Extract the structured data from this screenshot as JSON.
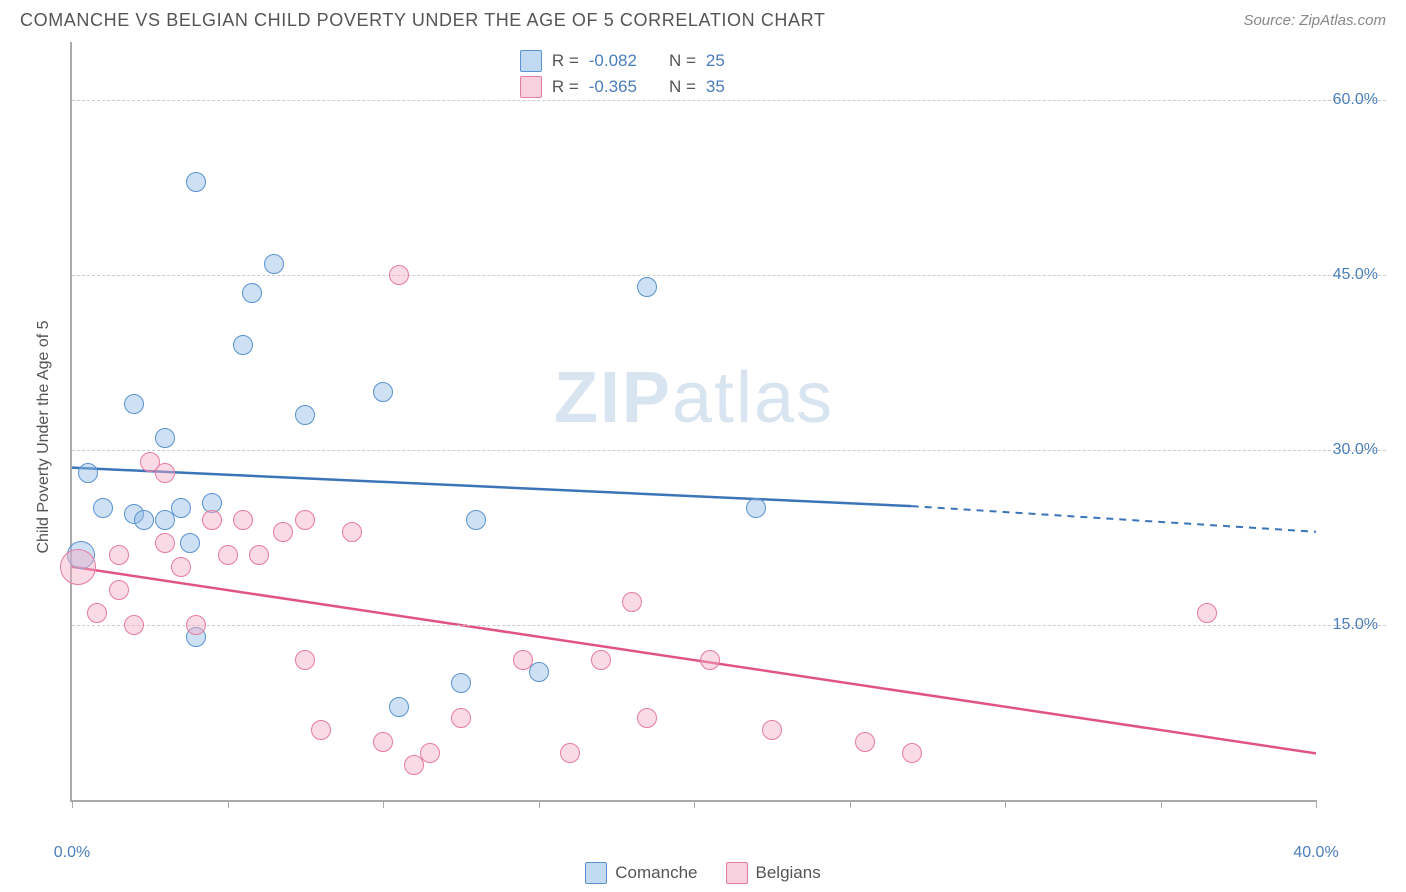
{
  "header": {
    "title": "COMANCHE VS BELGIAN CHILD POVERTY UNDER THE AGE OF 5 CORRELATION CHART",
    "source": "Source: ZipAtlas.com"
  },
  "chart": {
    "type": "scatter",
    "ylabel": "Child Poverty Under the Age of 5",
    "watermark": "ZIPatlas",
    "background_color": "#ffffff",
    "grid_color": "#cccccc",
    "axis_color": "#aaaaaa",
    "tick_label_color": "#4a7ebb",
    "xlim": [
      0,
      40
    ],
    "ylim": [
      0,
      65
    ],
    "xticks": [
      0,
      5,
      10,
      15,
      20,
      25,
      30,
      35,
      40
    ],
    "xtick_labels": {
      "0": "0.0%",
      "40": "40.0%"
    },
    "yticks": [
      15,
      30,
      45,
      60
    ],
    "ytick_labels": {
      "15": "15.0%",
      "30": "30.0%",
      "45": "45.0%",
      "60": "60.0%"
    },
    "point_radius": 10,
    "series": [
      {
        "name": "Comanche",
        "color_fill": "rgba(144,187,230,0.45)",
        "color_stroke": "#5b93cf",
        "line_color": "#3b74b8",
        "trend": {
          "x0": 0,
          "y0": 28.5,
          "x_solid_end": 27,
          "y_solid_end": 25.2,
          "x1": 40,
          "y1": 23.0
        },
        "points": [
          {
            "x": 0.3,
            "y": 21,
            "r": 14
          },
          {
            "x": 0.5,
            "y": 28
          },
          {
            "x": 2.0,
            "y": 34
          },
          {
            "x": 1.0,
            "y": 25
          },
          {
            "x": 2.0,
            "y": 24.5
          },
          {
            "x": 2.3,
            "y": 24
          },
          {
            "x": 3.0,
            "y": 24
          },
          {
            "x": 3.0,
            "y": 31
          },
          {
            "x": 3.5,
            "y": 25
          },
          {
            "x": 3.8,
            "y": 22
          },
          {
            "x": 4.0,
            "y": 53
          },
          {
            "x": 4.5,
            "y": 25.5
          },
          {
            "x": 4.0,
            "y": 14
          },
          {
            "x": 5.5,
            "y": 39
          },
          {
            "x": 5.8,
            "y": 43.5
          },
          {
            "x": 6.5,
            "y": 46
          },
          {
            "x": 7.5,
            "y": 33
          },
          {
            "x": 10.0,
            "y": 35
          },
          {
            "x": 10.5,
            "y": 8
          },
          {
            "x": 12.5,
            "y": 10
          },
          {
            "x": 13.0,
            "y": 24
          },
          {
            "x": 15.0,
            "y": 11
          },
          {
            "x": 18.5,
            "y": 44
          },
          {
            "x": 22.0,
            "y": 25
          }
        ]
      },
      {
        "name": "Belgians",
        "color_fill": "rgba(243,172,195,0.45)",
        "color_stroke": "#e67ca1",
        "line_color": "#e0557f",
        "trend": {
          "x0": 0,
          "y0": 20,
          "x_solid_end": 40,
          "y_solid_end": 4,
          "x1": 40,
          "y1": 4
        },
        "points": [
          {
            "x": 0.2,
            "y": 20,
            "r": 18
          },
          {
            "x": 0.8,
            "y": 16
          },
          {
            "x": 1.5,
            "y": 18
          },
          {
            "x": 1.5,
            "y": 21
          },
          {
            "x": 2.0,
            "y": 15
          },
          {
            "x": 2.5,
            "y": 29
          },
          {
            "x": 3.0,
            "y": 28
          },
          {
            "x": 3.0,
            "y": 22
          },
          {
            "x": 3.5,
            "y": 20
          },
          {
            "x": 4.0,
            "y": 15
          },
          {
            "x": 4.5,
            "y": 24
          },
          {
            "x": 5.0,
            "y": 21
          },
          {
            "x": 5.5,
            "y": 24
          },
          {
            "x": 6.0,
            "y": 21
          },
          {
            "x": 6.8,
            "y": 23
          },
          {
            "x": 7.5,
            "y": 24
          },
          {
            "x": 7.5,
            "y": 12
          },
          {
            "x": 8.0,
            "y": 6
          },
          {
            "x": 9.0,
            "y": 23
          },
          {
            "x": 10.0,
            "y": 5
          },
          {
            "x": 10.5,
            "y": 45
          },
          {
            "x": 11.0,
            "y": 3
          },
          {
            "x": 11.5,
            "y": 4
          },
          {
            "x": 12.5,
            "y": 7
          },
          {
            "x": 14.5,
            "y": 12
          },
          {
            "x": 16.0,
            "y": 4
          },
          {
            "x": 17.0,
            "y": 12
          },
          {
            "x": 18.0,
            "y": 17
          },
          {
            "x": 18.5,
            "y": 7
          },
          {
            "x": 20.5,
            "y": 12
          },
          {
            "x": 22.5,
            "y": 6
          },
          {
            "x": 25.5,
            "y": 5
          },
          {
            "x": 27.0,
            "y": 4
          },
          {
            "x": 36.5,
            "y": 16
          }
        ]
      }
    ],
    "legend_top": [
      {
        "swatch": "blue",
        "r_label": "R =",
        "r_value": "-0.082",
        "n_label": "N =",
        "n_value": "25"
      },
      {
        "swatch": "pink",
        "r_label": "R =",
        "r_value": "-0.365",
        "n_label": "N =",
        "n_value": "35"
      }
    ],
    "legend_bottom": [
      {
        "swatch": "blue",
        "label": "Comanche"
      },
      {
        "swatch": "pink",
        "label": "Belgians"
      }
    ]
  }
}
